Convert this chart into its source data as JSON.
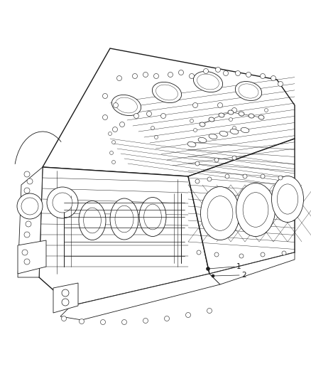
{
  "background_color": "#ffffff",
  "line_color": "#1a1a1a",
  "fill_white": "#ffffff",
  "fill_light": "#f0f0f0",
  "fill_mid": "#e0e0e0",
  "fill_dark": "#c8c8c8",
  "fig_width": 4.38,
  "fig_height": 5.33,
  "dpi": 100,
  "label_1": "1",
  "label_2": "2",
  "label_fontsize": 7.5
}
